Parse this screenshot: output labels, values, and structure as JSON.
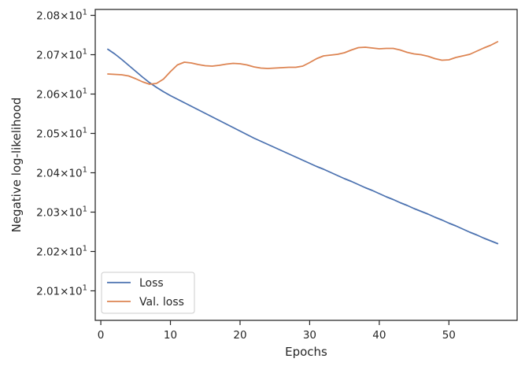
{
  "chart_data": {
    "type": "line",
    "title": "",
    "xlabel": "Epochs",
    "ylabel": "Negative log-likelihood",
    "xlim": [
      -0.8,
      59.8
    ],
    "ylim": [
      20.0025,
      20.0815
    ],
    "xticks": [
      0,
      10,
      20,
      30,
      40,
      50
    ],
    "yticks": [
      {
        "value": 20.01,
        "mantissa": "2.01",
        "exp": "1"
      },
      {
        "value": 20.02,
        "mantissa": "2.02",
        "exp": "1"
      },
      {
        "value": 20.03,
        "mantissa": "2.03",
        "exp": "1"
      },
      {
        "value": 20.04,
        "mantissa": "2.04",
        "exp": "1"
      },
      {
        "value": 20.05,
        "mantissa": "2.05",
        "exp": "1"
      },
      {
        "value": 20.06,
        "mantissa": "2.06",
        "exp": "1"
      },
      {
        "value": 20.07,
        "mantissa": "2.07",
        "exp": "1"
      },
      {
        "value": 20.08,
        "mantissa": "2.08",
        "exp": "1"
      }
    ],
    "tick_times": "×",
    "tick_base": "10",
    "grid": false,
    "legend_position": "lower-left",
    "x": [
      1,
      2,
      3,
      4,
      5,
      6,
      7,
      8,
      9,
      10,
      11,
      12,
      13,
      14,
      15,
      16,
      17,
      18,
      19,
      20,
      21,
      22,
      23,
      24,
      25,
      26,
      27,
      28,
      29,
      30,
      31,
      32,
      33,
      34,
      35,
      36,
      37,
      38,
      39,
      40,
      41,
      42,
      43,
      44,
      45,
      46,
      47,
      48,
      49,
      50,
      51,
      52,
      53,
      54,
      55,
      56,
      57
    ],
    "series": [
      {
        "name": "Loss",
        "color": "#4c72b0",
        "values": [
          20.0714,
          20.0702,
          20.0688,
          20.0673,
          20.0658,
          20.0643,
          20.0629,
          20.0617,
          20.0606,
          20.0596,
          20.0587,
          20.0578,
          20.0569,
          20.056,
          20.0551,
          20.0542,
          20.0533,
          20.0524,
          20.0515,
          20.0506,
          20.0497,
          20.0488,
          20.048,
          20.0472,
          20.0464,
          20.0456,
          20.0448,
          20.044,
          20.0432,
          20.0424,
          20.0416,
          20.0409,
          20.0401,
          20.0393,
          20.0385,
          20.0378,
          20.037,
          20.0362,
          20.0355,
          20.0347,
          20.0339,
          20.0332,
          20.0324,
          20.0317,
          20.0309,
          20.0302,
          20.0295,
          20.0287,
          20.028,
          20.0272,
          20.0265,
          20.0257,
          20.0249,
          20.0242,
          20.0234,
          20.0227,
          20.022
        ]
      },
      {
        "name": "Val. loss",
        "color": "#dd8452",
        "values": [
          20.0651,
          20.065,
          20.0649,
          20.0646,
          20.0639,
          20.0631,
          20.0625,
          20.0627,
          20.0638,
          20.0657,
          20.0674,
          20.0681,
          20.0679,
          20.0675,
          20.0672,
          20.0671,
          20.0673,
          20.0676,
          20.0678,
          20.0677,
          20.0674,
          20.0669,
          20.0666,
          20.0665,
          20.0666,
          20.0667,
          20.0668,
          20.0668,
          20.0671,
          20.068,
          20.069,
          20.0697,
          20.0699,
          20.0701,
          20.0705,
          20.0712,
          20.0718,
          20.0719,
          20.0717,
          20.0715,
          20.0716,
          20.0716,
          20.0712,
          20.0706,
          20.0702,
          20.07,
          20.0696,
          20.069,
          20.0686,
          20.0687,
          20.0693,
          20.0697,
          20.0701,
          20.0709,
          20.0717,
          20.0724,
          20.0733
        ]
      }
    ]
  }
}
